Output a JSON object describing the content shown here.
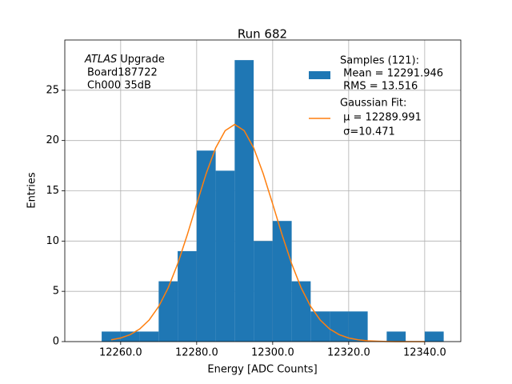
{
  "chart_data": {
    "type": "histogram",
    "title": "Run 682",
    "x_label": "Energy [ADC Counts]",
    "y_label": "Entries",
    "annotation": [
      "ATLAS",
      "Upgrade",
      "Board187722",
      "Ch000 35dB"
    ],
    "bins": [
      12255,
      12260,
      12265,
      12270,
      12275,
      12280,
      12285,
      12290,
      12295,
      12300,
      12305,
      12310,
      12315,
      12320,
      12325,
      12330,
      12335,
      12340,
      12345
    ],
    "counts": [
      1,
      1,
      1,
      6,
      9,
      19,
      17,
      28,
      10,
      12,
      6,
      3,
      3,
      3,
      0,
      1,
      0,
      1
    ],
    "color": "#1f77b4",
    "name": "Samples (121):",
    "stats": [
      " Mean = 12291.946",
      " RMS = 13.516"
    ],
    "fit": {
      "type": "line",
      "name": "Gaussian Fit:",
      "stats": [
        " μ = 12289.991",
        " σ=10.471"
      ],
      "color": "#ff7f0e",
      "x": [
        12257.5,
        12260,
        12262.5,
        12265,
        12267.5,
        12270,
        12272.5,
        12275,
        12277.5,
        12280,
        12282.5,
        12285,
        12287.5,
        12290,
        12292.5,
        12295,
        12297.5,
        12300,
        12302.5,
        12305,
        12307.5,
        12310,
        12312.5,
        12315,
        12317.5,
        12320,
        12322.5,
        12325,
        12327.5,
        12330,
        12332.5,
        12335,
        12337.5,
        12340
      ],
      "values": [
        0.18,
        0.36,
        0.69,
        1.25,
        2.15,
        3.49,
        5.34,
        7.74,
        10.59,
        13.69,
        16.71,
        19.27,
        20.99,
        21.6,
        20.99,
        19.27,
        16.71,
        13.69,
        10.59,
        7.74,
        5.34,
        3.49,
        2.15,
        1.25,
        0.69,
        0.36,
        0.18,
        0.08,
        0.04,
        0.01,
        0,
        0,
        0,
        0
      ]
    },
    "xlim": [
      12245.3,
      12349.5
    ],
    "ylim": [
      0,
      30
    ],
    "xticks": [
      {
        "value": 12260,
        "label": "12260.0"
      },
      {
        "value": 12280,
        "label": "12280.0"
      },
      {
        "value": 12300,
        "label": "12300.0"
      },
      {
        "value": 12320,
        "label": "12320.0"
      },
      {
        "value": 12340,
        "label": "12340.0"
      }
    ],
    "yticks": [
      0,
      5,
      10,
      15,
      20,
      25
    ],
    "grid": true
  }
}
